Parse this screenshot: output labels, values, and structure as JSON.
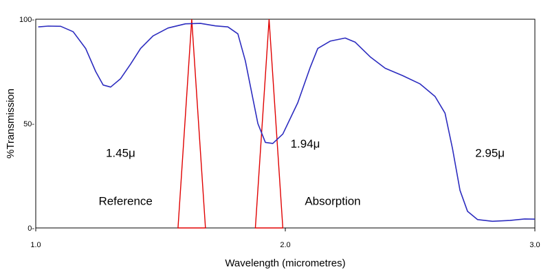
{
  "chart_data": {
    "type": "line",
    "title": "",
    "xlabel": "Wavelength (micrometres)",
    "ylabel": "%Transmission",
    "xlim": [
      1.0,
      3.0
    ],
    "ylim": [
      0,
      100
    ],
    "x_ticks": [
      {
        "value": 1.0,
        "label": "1.0"
      },
      {
        "value": 2.0,
        "label": "2.0"
      },
      {
        "value": 3.0,
        "label": "3.0"
      }
    ],
    "y_ticks": [
      {
        "value": 0,
        "label": "0-"
      },
      {
        "value": 50,
        "label": "50-"
      },
      {
        "value": 100,
        "label": "100-"
      }
    ],
    "grid": false,
    "legend": "none",
    "series": [
      {
        "color": "#2b2bbf",
        "points": [
          [
            1.01,
            96.3
          ],
          [
            1.05,
            96.7
          ],
          [
            1.1,
            96.6
          ],
          [
            1.15,
            94.0
          ],
          [
            1.2,
            86.0
          ],
          [
            1.24,
            75.0
          ],
          [
            1.27,
            68.5
          ],
          [
            1.3,
            67.5
          ],
          [
            1.34,
            71.5
          ],
          [
            1.38,
            78.5
          ],
          [
            1.42,
            86.0
          ],
          [
            1.47,
            92.0
          ],
          [
            1.53,
            95.8
          ],
          [
            1.6,
            97.8
          ],
          [
            1.66,
            98.0
          ],
          [
            1.72,
            96.8
          ],
          [
            1.77,
            96.3
          ],
          [
            1.81,
            93.0
          ],
          [
            1.84,
            80.0
          ],
          [
            1.87,
            62.0
          ],
          [
            1.89,
            50.0
          ],
          [
            1.92,
            41.0
          ],
          [
            1.95,
            40.5
          ],
          [
            1.99,
            45.0
          ],
          [
            2.05,
            60.0
          ],
          [
            2.1,
            77.0
          ],
          [
            2.13,
            86.0
          ],
          [
            2.18,
            89.5
          ],
          [
            2.24,
            91.0
          ],
          [
            2.28,
            89.0
          ],
          [
            2.34,
            82.0
          ],
          [
            2.4,
            76.5
          ],
          [
            2.47,
            73.0
          ],
          [
            2.54,
            69.0
          ],
          [
            2.6,
            63.0
          ],
          [
            2.64,
            55.0
          ],
          [
            2.67,
            38.0
          ],
          [
            2.7,
            18.0
          ],
          [
            2.73,
            8.0
          ],
          [
            2.77,
            4.0
          ],
          [
            2.83,
            3.2
          ],
          [
            2.9,
            3.6
          ],
          [
            2.96,
            4.3
          ],
          [
            3.0,
            4.2
          ]
        ]
      }
    ],
    "markers": [
      {
        "color": "#e00000",
        "peak_x": 1.625,
        "base_x0": 1.57,
        "base_x1": 1.68,
        "top": 100,
        "base": 0
      },
      {
        "color": "#e00000",
        "peak_x": 1.935,
        "base_x0": 1.88,
        "base_x1": 1.99,
        "top": 100,
        "base": 0
      }
    ],
    "annotations": [
      {
        "text": "1.45μ",
        "x": 1.34,
        "y": 34
      },
      {
        "text": "Reference",
        "x": 1.36,
        "y": 11
      },
      {
        "text": "1.94μ",
        "x": 2.08,
        "y": 38.5
      },
      {
        "text": "Absorption",
        "x": 2.19,
        "y": 11
      },
      {
        "text": "2.95μ",
        "x": 2.82,
        "y": 34
      }
    ]
  }
}
